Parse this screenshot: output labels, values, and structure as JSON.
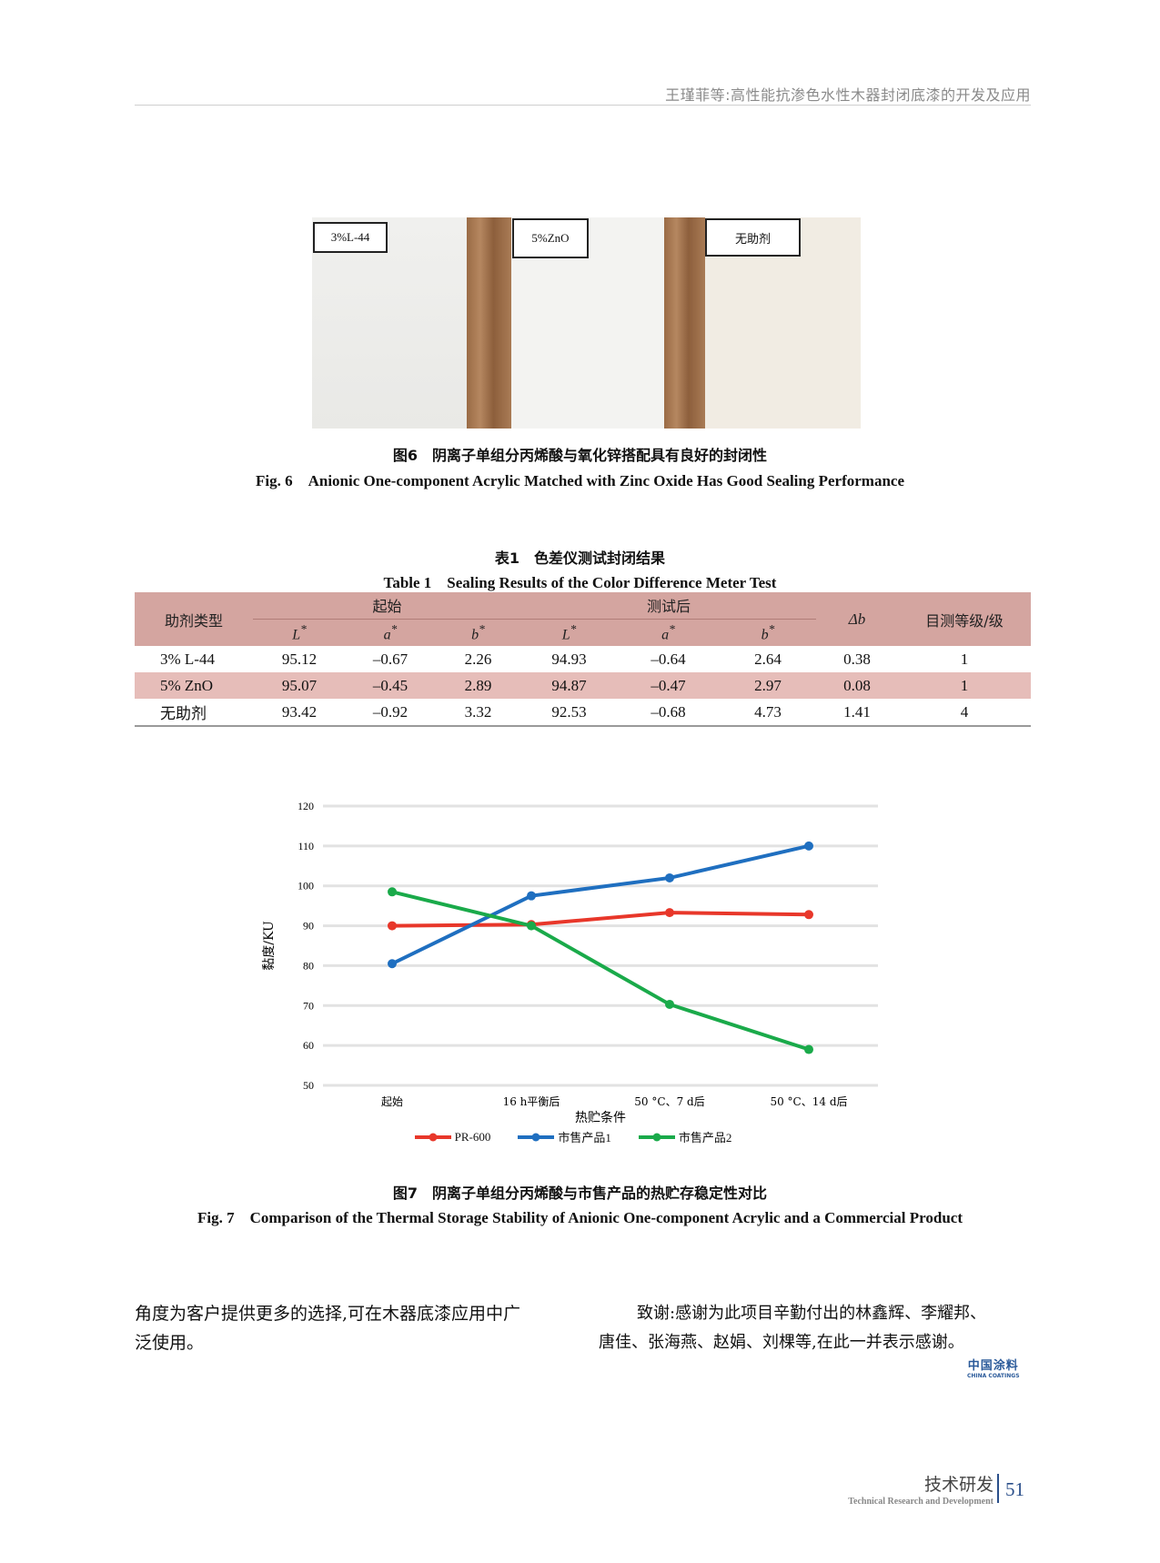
{
  "running_header": "王瑾菲等:高性能抗渗色水性木器封闭底漆的开发及应用",
  "figure6": {
    "labels": [
      "3%L-44",
      "5%ZnO",
      "无助剂"
    ],
    "caption_cn": "图6　阴离子单组分丙烯酸与氧化锌搭配具有良好的封闭性",
    "caption_en": "Fig. 6　Anionic One-component Acrylic Matched with Zinc Oxide Has Good Sealing Performance"
  },
  "table1": {
    "caption_cn": "表1　色差仪测试封闭结果",
    "caption_en": "Table 1　Sealing Results of the Color Difference Meter Test",
    "headers": {
      "type": "助剂类型",
      "initial": "起始",
      "after": "测试后",
      "L": "L",
      "a": "a",
      "b": "b",
      "star": "*",
      "delta_b": "Δb",
      "grade": "目测等级/级"
    },
    "rows": [
      [
        "3% L-44",
        "95.12",
        "–0.67",
        "2.26",
        "94.93",
        "–0.64",
        "2.64",
        "0.38",
        "1"
      ],
      [
        "5% ZnO",
        "95.07",
        "–0.45",
        "2.89",
        "94.87",
        "–0.47",
        "2.97",
        "0.08",
        "1"
      ],
      [
        "无助剂",
        "93.42",
        "–0.92",
        "3.32",
        "92.53",
        "–0.68",
        "4.73",
        "1.41",
        "4"
      ]
    ]
  },
  "chart_data": {
    "type": "line",
    "categories": [
      "起始",
      "16 h平衡后",
      "50 °C、7 d后",
      "50 °C、14 d后"
    ],
    "xlabel": "热贮条件",
    "ylabel": "黏度/KU",
    "ylim": [
      50,
      120
    ],
    "yticks": [
      50,
      60,
      70,
      80,
      90,
      100,
      110,
      120
    ],
    "grid": true,
    "legend_position": "bottom",
    "series": [
      {
        "name": "PR-600",
        "color": "#e8372a",
        "values": [
          90,
          90.3,
          93.3,
          92.8
        ]
      },
      {
        "name": "市售产品1",
        "color": "#1f6fc0",
        "values": [
          80.5,
          97.5,
          102,
          110
        ]
      },
      {
        "name": "市售产品2",
        "color": "#1aaa4a",
        "values": [
          98.5,
          90,
          70.3,
          59
        ]
      }
    ]
  },
  "figure7": {
    "caption_cn": "图7　阴离子单组分丙烯酸与市售产品的热贮存稳定性对比",
    "caption_en": "Fig. 7　Comparison of the Thermal Storage Stability of Anionic One-component Acrylic and a Commercial Product"
  },
  "body": {
    "left_line1": "角度为客户提供更多的选择,可在木器底漆应用中广",
    "left_line2": "泛使用。",
    "right_line1": "致谢:感谢为此项目辛勤付出的林鑫辉、李耀邦、",
    "right_line2": "唐佳、张海燕、赵娟、刘棵等,在此一并表示感谢。"
  },
  "logo": {
    "cn": "中国涂料",
    "en": "CHINA COATINGS"
  },
  "footer": {
    "section_cn": "技术研发",
    "section_en": "Technical Research and Development",
    "page": "51"
  }
}
